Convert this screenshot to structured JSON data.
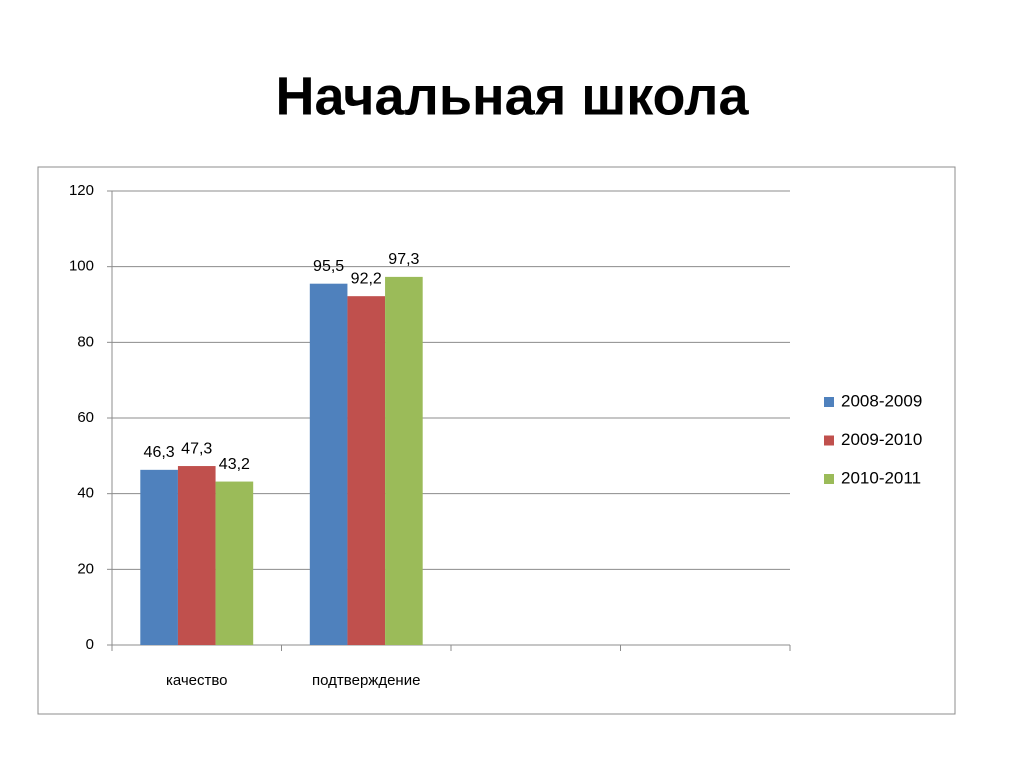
{
  "chart_data": {
    "type": "bar",
    "title": "Начальная школа",
    "categories": [
      "качество",
      "подтверждение",
      null,
      null
    ],
    "series": [
      {
        "name": "2008-2009",
        "color": "#4f81bd",
        "values": [
          46.3,
          95.5,
          null,
          null
        ],
        "value_labels": [
          "46,3",
          "95,5",
          null,
          null
        ]
      },
      {
        "name": "2009-2010",
        "color": "#c0504d",
        "values": [
          47.3,
          92.2,
          null,
          null
        ],
        "value_labels": [
          "47,3",
          "92,2",
          null,
          null
        ]
      },
      {
        "name": "2010-2011",
        "color": "#9bbb59",
        "values": [
          43.2,
          97.3,
          null,
          null
        ],
        "value_labels": [
          "43,2",
          "97,3",
          null,
          null
        ]
      }
    ],
    "ylim": [
      0,
      120
    ],
    "yticks": [
      0,
      20,
      40,
      60,
      80,
      100,
      120
    ],
    "grid": true,
    "legend": "right"
  }
}
